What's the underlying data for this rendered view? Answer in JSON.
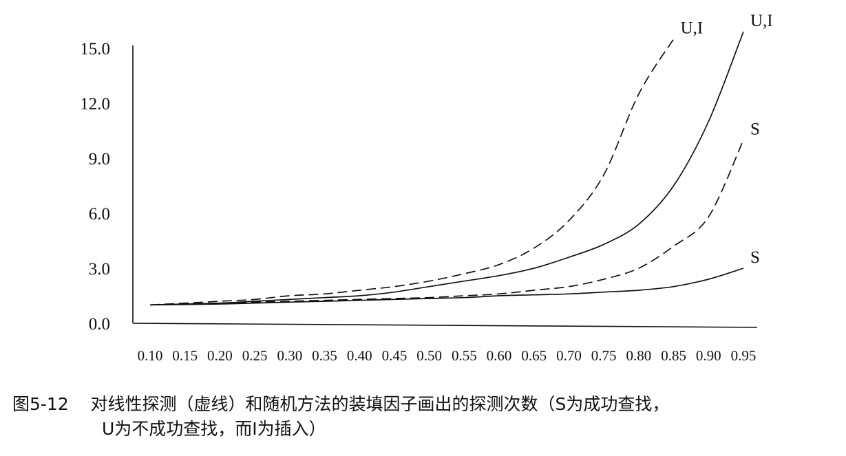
{
  "chart_data": {
    "type": "line",
    "title": "",
    "xlabel": "",
    "ylabel": "",
    "x": [
      0.1,
      0.15,
      0.2,
      0.25,
      0.3,
      0.35,
      0.4,
      0.45,
      0.5,
      0.55,
      0.6,
      0.65,
      0.7,
      0.75,
      0.8,
      0.85,
      0.9,
      0.95
    ],
    "x_tick_labels": [
      "0.10",
      "0.15",
      "0.20",
      "0.25",
      "0.30",
      "0.35",
      "0.40",
      "0.45",
      "0.50",
      "0.55",
      "0.60",
      "0.65",
      "0.70",
      "0.75",
      "0.80",
      "0.85",
      "0.90",
      "0.95"
    ],
    "y_tick_labels": [
      "0.0",
      "3.0",
      "6.0",
      "9.0",
      "12.0",
      "15.0"
    ],
    "y_ticks": [
      0,
      3,
      6,
      9,
      12,
      15
    ],
    "ylim": [
      0,
      15
    ],
    "grid": false,
    "series": [
      {
        "name": "U,I",
        "style": "dashed",
        "x": [
          0.1,
          0.15,
          0.2,
          0.25,
          0.3,
          0.35,
          0.4,
          0.45,
          0.5,
          0.55,
          0.6,
          0.65,
          0.7,
          0.75,
          0.8,
          0.85
        ],
        "values": [
          1.0,
          1.1,
          1.2,
          1.3,
          1.5,
          1.6,
          1.8,
          2.0,
          2.3,
          2.7,
          3.2,
          4.1,
          5.6,
          8.1,
          12.5,
          15.5
        ]
      },
      {
        "name": "U,I",
        "style": "solid",
        "x": [
          0.1,
          0.15,
          0.2,
          0.25,
          0.3,
          0.35,
          0.4,
          0.45,
          0.5,
          0.55,
          0.6,
          0.65,
          0.7,
          0.75,
          0.8,
          0.85,
          0.9,
          0.95
        ],
        "values": [
          1.0,
          1.05,
          1.1,
          1.2,
          1.3,
          1.4,
          1.5,
          1.7,
          2.0,
          2.3,
          2.6,
          3.0,
          3.6,
          4.3,
          5.4,
          7.5,
          11.0,
          15.9
        ]
      },
      {
        "name": "S",
        "style": "dashed",
        "x": [
          0.1,
          0.15,
          0.2,
          0.25,
          0.3,
          0.35,
          0.4,
          0.45,
          0.5,
          0.55,
          0.6,
          0.65,
          0.7,
          0.75,
          0.8,
          0.85,
          0.9,
          0.95
        ],
        "values": [
          1.0,
          1.05,
          1.1,
          1.15,
          1.2,
          1.25,
          1.3,
          1.35,
          1.4,
          1.5,
          1.6,
          1.8,
          2.0,
          2.4,
          3.0,
          4.2,
          5.8,
          10.0
        ]
      },
      {
        "name": "S",
        "style": "solid",
        "x": [
          0.1,
          0.15,
          0.2,
          0.25,
          0.3,
          0.35,
          0.4,
          0.45,
          0.5,
          0.55,
          0.6,
          0.65,
          0.7,
          0.75,
          0.8,
          0.85,
          0.9,
          0.95
        ],
        "values": [
          1.0,
          1.02,
          1.05,
          1.1,
          1.15,
          1.2,
          1.25,
          1.3,
          1.35,
          1.4,
          1.5,
          1.55,
          1.6,
          1.7,
          1.8,
          2.0,
          2.4,
          3.0
        ]
      }
    ]
  },
  "caption": {
    "label": "图5-12",
    "line1": "对线性探测（虚线）和随机方法的装填因子画出的探测次数（S为成功查找，",
    "line2": "U为不成功查找，而I为插入）"
  }
}
